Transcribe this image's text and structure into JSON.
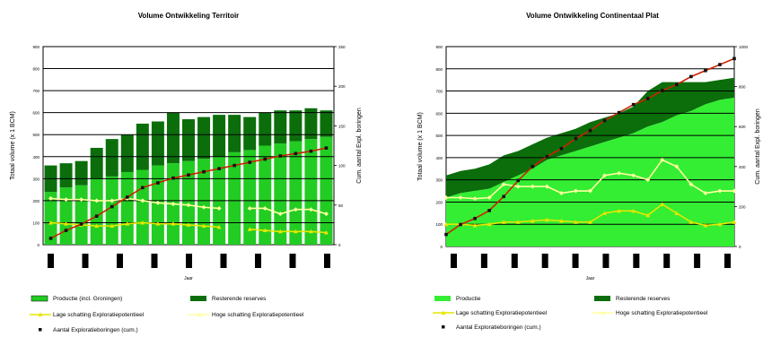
{
  "chart_data": [
    {
      "type": "bar",
      "title": "Volume Ontwikkeling Territoir",
      "xlabel": "Jaar",
      "ylabel": "Totaal volume (x 1 BCM)",
      "y2label": "Cum. aantal Expl. boringen",
      "ylim": [
        0,
        900
      ],
      "y2lim": [
        0,
        250
      ],
      "yticks": [
        0,
        100,
        200,
        300,
        400,
        500,
        600,
        700,
        800,
        900
      ],
      "y2ticks": [
        0,
        50,
        100,
        150,
        200,
        250
      ],
      "grid": "horizontal",
      "legend_position": "bottom",
      "colors": {
        "production": "#22cc22",
        "remaining": "#0b6e0b",
        "low": "#e6e600",
        "high": "#ffffa0",
        "wells": "#111111",
        "wells_line": "#cc2200"
      },
      "series": [
        {
          "name": "Productie (incl. Groningen)",
          "type": "stacked-bar",
          "values": [
            240,
            260,
            270,
            300,
            310,
            330,
            340,
            360,
            370,
            380,
            390,
            400,
            420,
            430,
            450,
            460,
            470,
            480,
            490
          ]
        },
        {
          "name": "Resterende reserves",
          "type": "stacked-bar",
          "values": [
            120,
            110,
            110,
            140,
            170,
            170,
            210,
            200,
            230,
            190,
            190,
            190,
            170,
            150,
            150,
            150,
            140,
            140,
            120
          ]
        },
        {
          "name": "Lage schatting Exploratiepotentieel",
          "type": "line",
          "values": [
            100,
            95,
            90,
            85,
            85,
            95,
            100,
            95,
            95,
            90,
            85,
            80,
            null,
            70,
            65,
            60,
            60,
            60,
            55
          ]
        },
        {
          "name": "Hoge schatting Exploratiepotentieel",
          "type": "line",
          "values": [
            210,
            205,
            205,
            200,
            200,
            210,
            200,
            190,
            185,
            180,
            170,
            165,
            null,
            165,
            165,
            140,
            160,
            160,
            140
          ]
        },
        {
          "name": "Aantal Exploratieboringen (cum.)",
          "type": "line",
          "axis": "right",
          "values": [
            8,
            18,
            26,
            36,
            48,
            60,
            72,
            78,
            84,
            88,
            92,
            96,
            100,
            104,
            108,
            112,
            115,
            118,
            122
          ]
        }
      ]
    },
    {
      "type": "area",
      "title": "Volume Ontwikkeling Continentaal Plat",
      "xlabel": "Jaar",
      "ylabel": "Totaal volume (x 1 BCM)",
      "y2label": "Cum. aantal Expl. boringen",
      "ylim": [
        0,
        900
      ],
      "y2lim": [
        0,
        1000
      ],
      "yticks": [
        0,
        100,
        200,
        300,
        400,
        500,
        600,
        700,
        800,
        900
      ],
      "y2ticks": [
        0,
        200,
        400,
        600,
        800,
        1000
      ],
      "grid": "horizontal",
      "legend_position": "bottom",
      "colors": {
        "production": "#33ee33",
        "remaining": "#0b6e0b",
        "low": "#e6e600",
        "high": "#ffffa0",
        "wells": "#111111",
        "wells_line": "#cc2200"
      },
      "series": [
        {
          "name": "Productie",
          "type": "stacked-area",
          "values": [
            220,
            240,
            250,
            260,
            290,
            320,
            350,
            390,
            410,
            430,
            450,
            470,
            490,
            510,
            540,
            560,
            590,
            610,
            640,
            660,
            670
          ]
        },
        {
          "name": "Resterende reserves",
          "type": "stacked-area",
          "values": [
            100,
            100,
            100,
            110,
            120,
            110,
            110,
            100,
            100,
            100,
            110,
            110,
            110,
            120,
            160,
            180,
            150,
            130,
            100,
            90,
            90
          ]
        },
        {
          "name": "Lage schatting Exploratiepotentieel",
          "type": "line",
          "values": [
            100,
            100,
            95,
            100,
            110,
            110,
            115,
            120,
            115,
            110,
            110,
            150,
            160,
            160,
            140,
            190,
            150,
            110,
            95,
            100,
            110
          ]
        },
        {
          "name": "Hoge schatting Exploratiepotentieel",
          "type": "line",
          "values": [
            220,
            220,
            215,
            220,
            280,
            270,
            270,
            270,
            240,
            250,
            250,
            320,
            330,
            320,
            300,
            390,
            360,
            280,
            240,
            250,
            250
          ]
        },
        {
          "name": "Aantal Exploratieboringen (cum.)",
          "type": "line",
          "axis": "right",
          "values": [
            60,
            110,
            140,
            180,
            250,
            330,
            400,
            450,
            490,
            540,
            580,
            630,
            670,
            710,
            740,
            780,
            810,
            850,
            880,
            910,
            940
          ]
        }
      ]
    }
  ]
}
